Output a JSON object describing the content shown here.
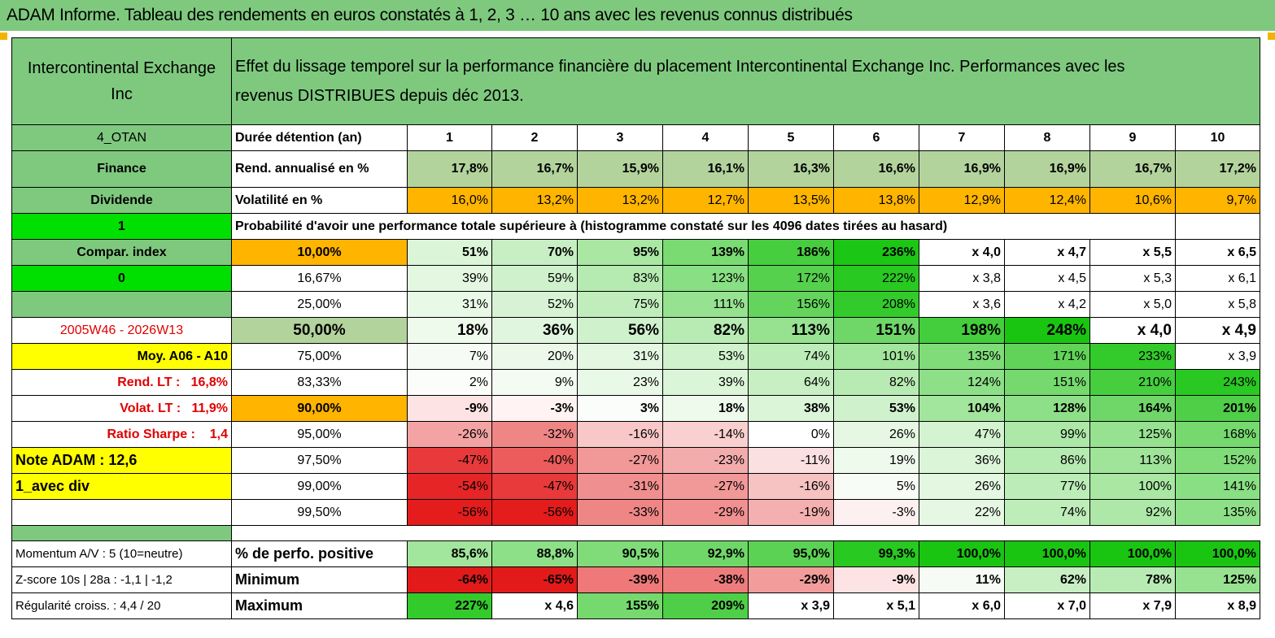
{
  "title": "ADAM Informe. Tableau des rendements en euros constatés à 1, 2, 3 … 10 ans avec les revenus connus distribués",
  "header": {
    "name_line1": "Intercontinental Exchange",
    "name_line2": "Inc",
    "desc_line1": "Effet du lissage temporel sur la performance financière du placement Intercontinental Exchange Inc. Performances avec les",
    "desc_line2": "revenus DISTRIBUES depuis déc 2013."
  },
  "side": {
    "code": "4_OTAN",
    "sector": "Finance",
    "type": "Dividende",
    "flag1": "1",
    "compar": "Compar. index",
    "flag0": "0",
    "period": "2005W46 - 2026W13",
    "moy": "Moy. A06 - A10",
    "rend_lt_label": "Rend. LT :",
    "rend_lt_value": "16,8%",
    "volat_lt_label": "Volat. LT :",
    "volat_lt_value": "11,9%",
    "sharpe_label": "Ratio Sharpe :",
    "sharpe_value": "1,4",
    "note": "Note ADAM : 12,6",
    "avec_div": "1_avec div",
    "momentum": "Momentum A/V : 5 (10=neutre)",
    "zscore": "Z-score 10s | 28a : -1,1 | -1,2",
    "regularite": "Régularité croiss. : 4,4 / 20"
  },
  "rows": {
    "duree_label": "Durée détention (an)",
    "years": [
      "1",
      "2",
      "3",
      "4",
      "5",
      "6",
      "7",
      "8",
      "9",
      "10"
    ],
    "rend_label": "Rend. annualisé en %",
    "rend": [
      "17,8%",
      "16,7%",
      "15,9%",
      "16,1%",
      "16,3%",
      "16,6%",
      "16,9%",
      "16,9%",
      "16,7%",
      "17,2%"
    ],
    "vol_label": "Volatilité en %",
    "vol": [
      "16,0%",
      "13,2%",
      "13,2%",
      "12,7%",
      "13,5%",
      "13,8%",
      "12,9%",
      "12,4%",
      "10,6%",
      "9,7%"
    ],
    "proba_label": "Probabilité d'avoir une performance totale supérieure à (histogramme constaté sur les 4096 dates tirées au hasard)"
  },
  "probs": [
    {
      "label": "10,00%",
      "values": [
        "51%",
        "70%",
        "95%",
        "139%",
        "186%",
        "236%",
        "x 4,0",
        "x 4,7",
        "x 5,5",
        "x 6,5"
      ]
    },
    {
      "label": "16,67%",
      "values": [
        "39%",
        "59%",
        "83%",
        "123%",
        "172%",
        "222%",
        "x 3,8",
        "x 4,5",
        "x 5,3",
        "x 6,1"
      ]
    },
    {
      "label": "25,00%",
      "values": [
        "31%",
        "52%",
        "75%",
        "111%",
        "156%",
        "208%",
        "x 3,6",
        "x 4,2",
        "x 5,0",
        "x 5,8"
      ]
    },
    {
      "label": "50,00%",
      "values": [
        "18%",
        "36%",
        "56%",
        "82%",
        "113%",
        "151%",
        "198%",
        "248%",
        "x 4,0",
        "x 4,9"
      ]
    },
    {
      "label": "75,00%",
      "values": [
        "7%",
        "20%",
        "31%",
        "53%",
        "74%",
        "101%",
        "135%",
        "171%",
        "233%",
        "x 3,9"
      ]
    },
    {
      "label": "83,33%",
      "values": [
        "2%",
        "9%",
        "23%",
        "39%",
        "64%",
        "82%",
        "124%",
        "151%",
        "210%",
        "243%"
      ]
    },
    {
      "label": "90,00%",
      "values": [
        "-9%",
        "-3%",
        "3%",
        "18%",
        "38%",
        "53%",
        "104%",
        "128%",
        "164%",
        "201%"
      ]
    },
    {
      "label": "95,00%",
      "values": [
        "-26%",
        "-32%",
        "-16%",
        "-14%",
        "0%",
        "26%",
        "47%",
        "99%",
        "125%",
        "168%"
      ]
    },
    {
      "label": "97,50%",
      "values": [
        "-47%",
        "-40%",
        "-27%",
        "-23%",
        "-11%",
        "19%",
        "36%",
        "86%",
        "113%",
        "152%"
      ]
    },
    {
      "label": "99,00%",
      "values": [
        "-54%",
        "-47%",
        "-31%",
        "-27%",
        "-16%",
        "5%",
        "26%",
        "77%",
        "100%",
        "141%"
      ]
    },
    {
      "label": "99,50%",
      "values": [
        "-56%",
        "-56%",
        "-33%",
        "-29%",
        "-19%",
        "-3%",
        "22%",
        "74%",
        "92%",
        "135%"
      ]
    }
  ],
  "bottom": [
    {
      "label": "% de perfo. positive",
      "values": [
        "85,6%",
        "88,8%",
        "90,5%",
        "92,9%",
        "95,0%",
        "99,3%",
        "100,0%",
        "100,0%",
        "100,0%",
        "100,0%"
      ]
    },
    {
      "label": "Minimum",
      "values": [
        "-64%",
        "-65%",
        "-39%",
        "-38%",
        "-29%",
        "-9%",
        "11%",
        "62%",
        "78%",
        "125%"
      ]
    },
    {
      "label": "Maximum",
      "values": [
        "227%",
        "x 4,6",
        "155%",
        "209%",
        "x 3,9",
        "x 5,1",
        "x 6,0",
        "x 7,0",
        "x 7,9",
        "x 8,9"
      ]
    }
  ],
  "colors": {
    "header_green": "#7fc97f",
    "bright_green": "#00e000",
    "orange": "#ffb400",
    "yellow": "#ffff00",
    "red_text": "#e00000"
  }
}
